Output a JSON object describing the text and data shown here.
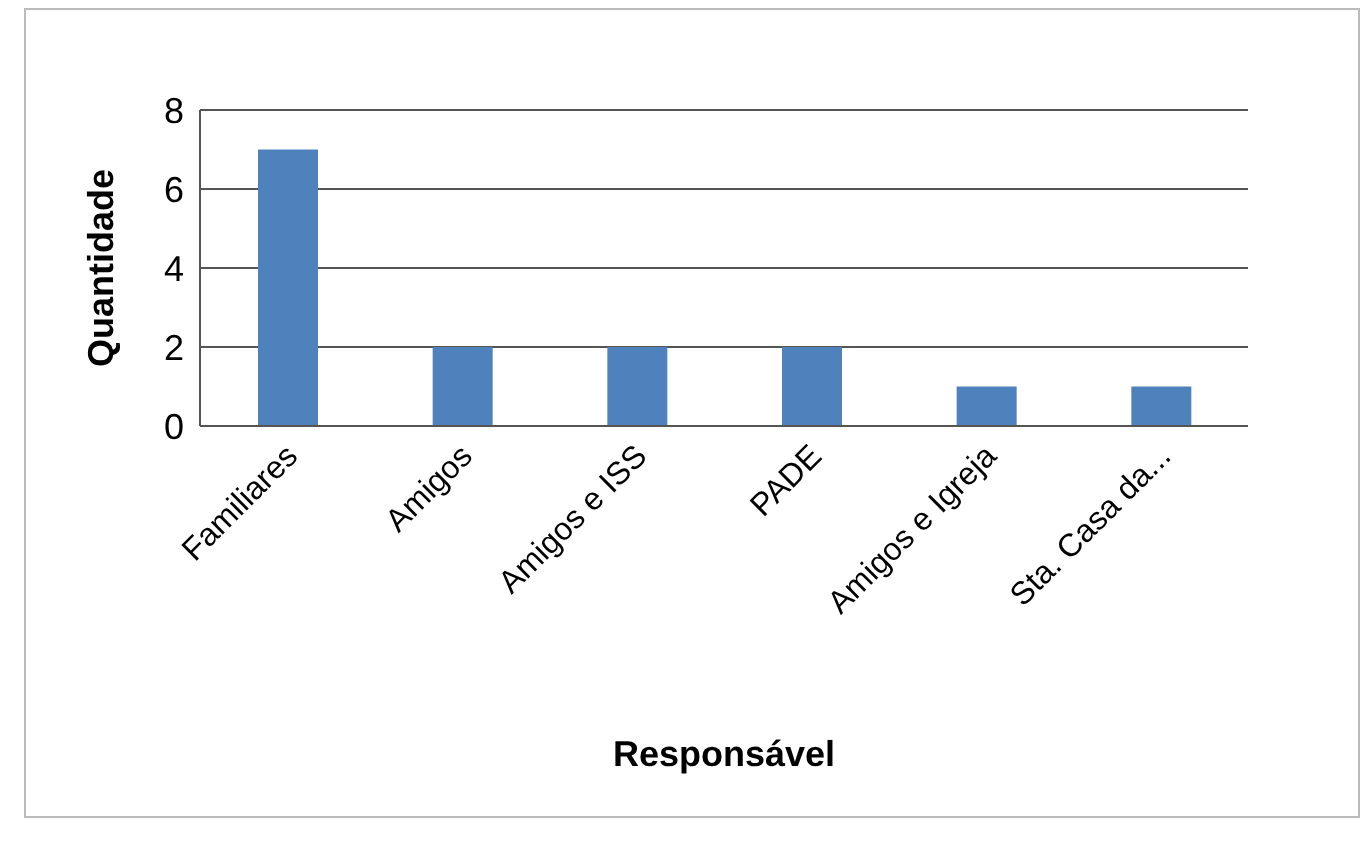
{
  "chart_data": {
    "type": "bar",
    "xlabel": "Responsável",
    "ylabel": "Quantidade",
    "categories": [
      "Familiares",
      "Amigos",
      "Amigos e ISS",
      "PADE",
      "Amigos e Igreja",
      "Sta. Casa da..."
    ],
    "values": [
      7,
      2,
      2,
      2,
      1,
      1
    ],
    "color": "#4f81bd",
    "ylim": [
      0,
      8
    ],
    "yticks": [
      0,
      2,
      4,
      6,
      8
    ],
    "grid": "y"
  }
}
